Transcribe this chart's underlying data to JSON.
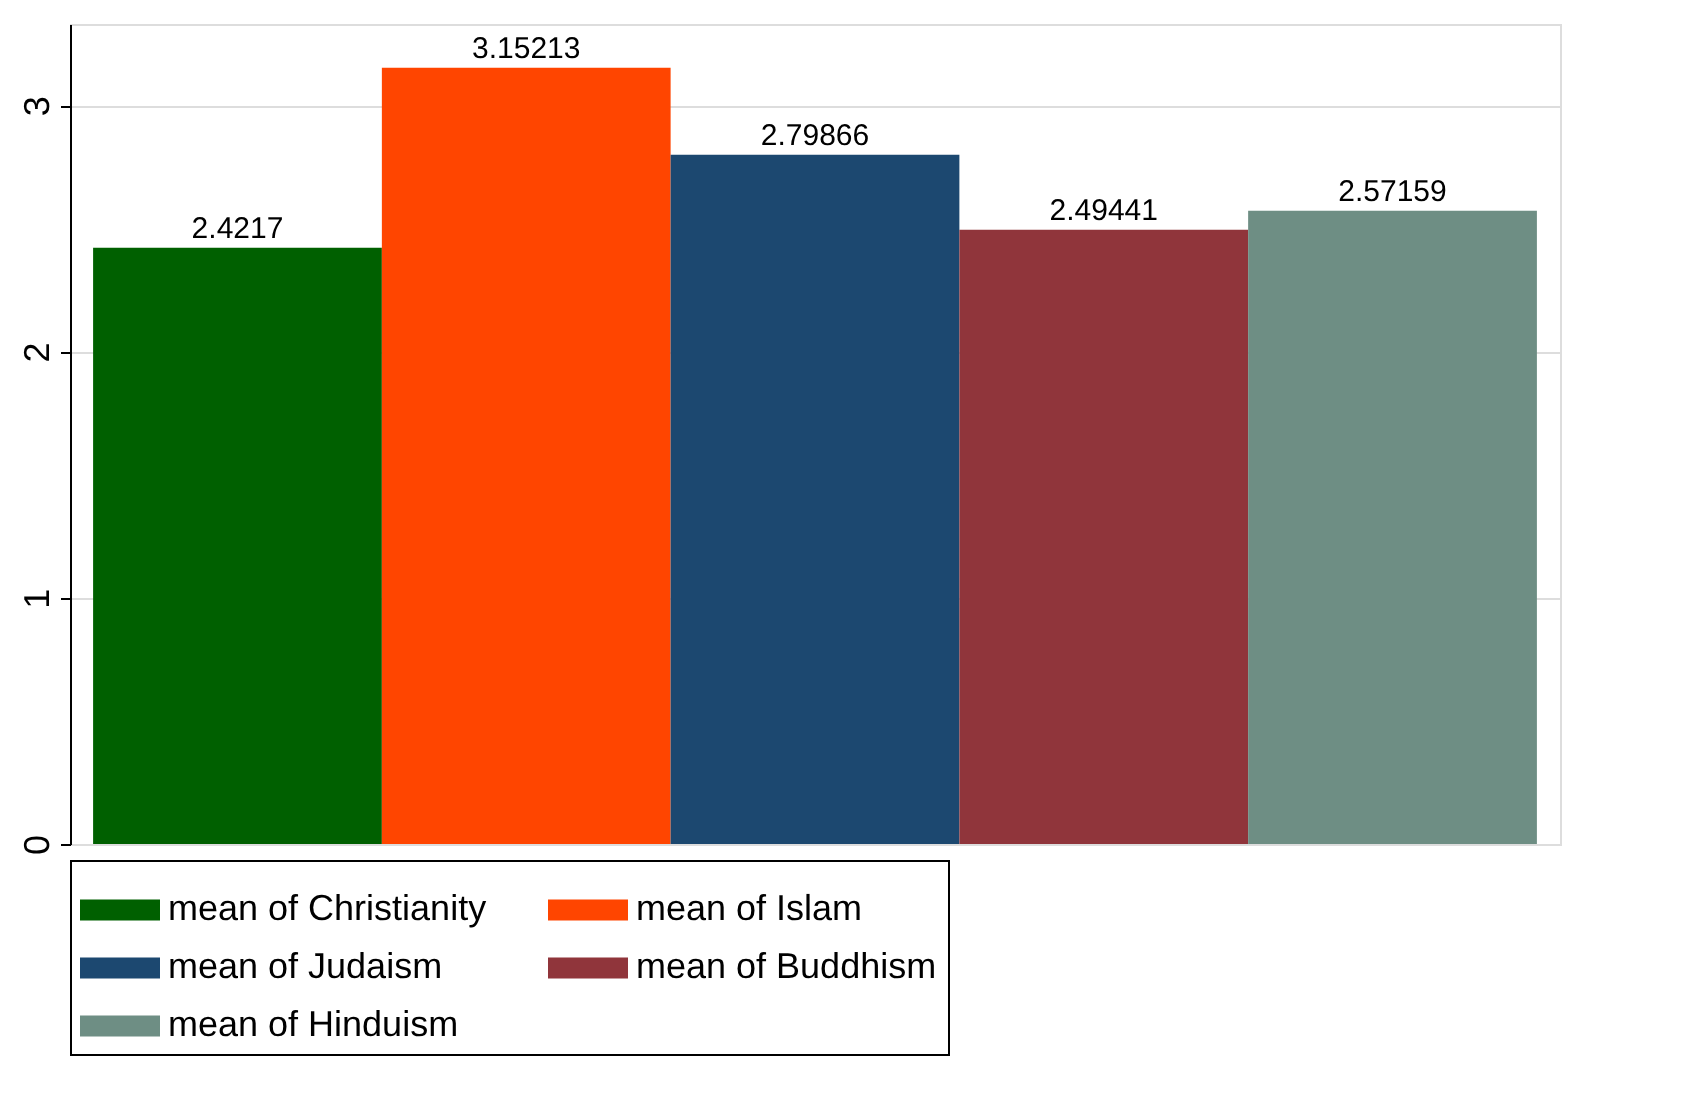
{
  "chart_data": {
    "type": "bar",
    "categories": [
      null
    ],
    "series": [
      {
        "name": "mean of Christianity",
        "color": "#006000",
        "values": [
          2.4217
        ]
      },
      {
        "name": "mean of Islam",
        "color": "#ff4500",
        "values": [
          3.15213
        ]
      },
      {
        "name": "mean of Judaism",
        "color": "#1c4870",
        "values": [
          2.79866
        ]
      },
      {
        "name": "mean of Buddhism",
        "color": "#90353b",
        "values": [
          2.49441
        ]
      },
      {
        "name": "mean of Hinduism",
        "color": "#6e8e84",
        "values": [
          2.57159
        ]
      }
    ],
    "ylim": [
      0,
      3.33
    ],
    "yticks": [
      {
        "value": 0,
        "label": "0"
      },
      {
        "value": 1,
        "label": "1"
      },
      {
        "value": 2,
        "label": "2"
      },
      {
        "value": 3,
        "label": "3"
      }
    ],
    "grid": "y",
    "legend": "bottom",
    "data_labels": true
  }
}
